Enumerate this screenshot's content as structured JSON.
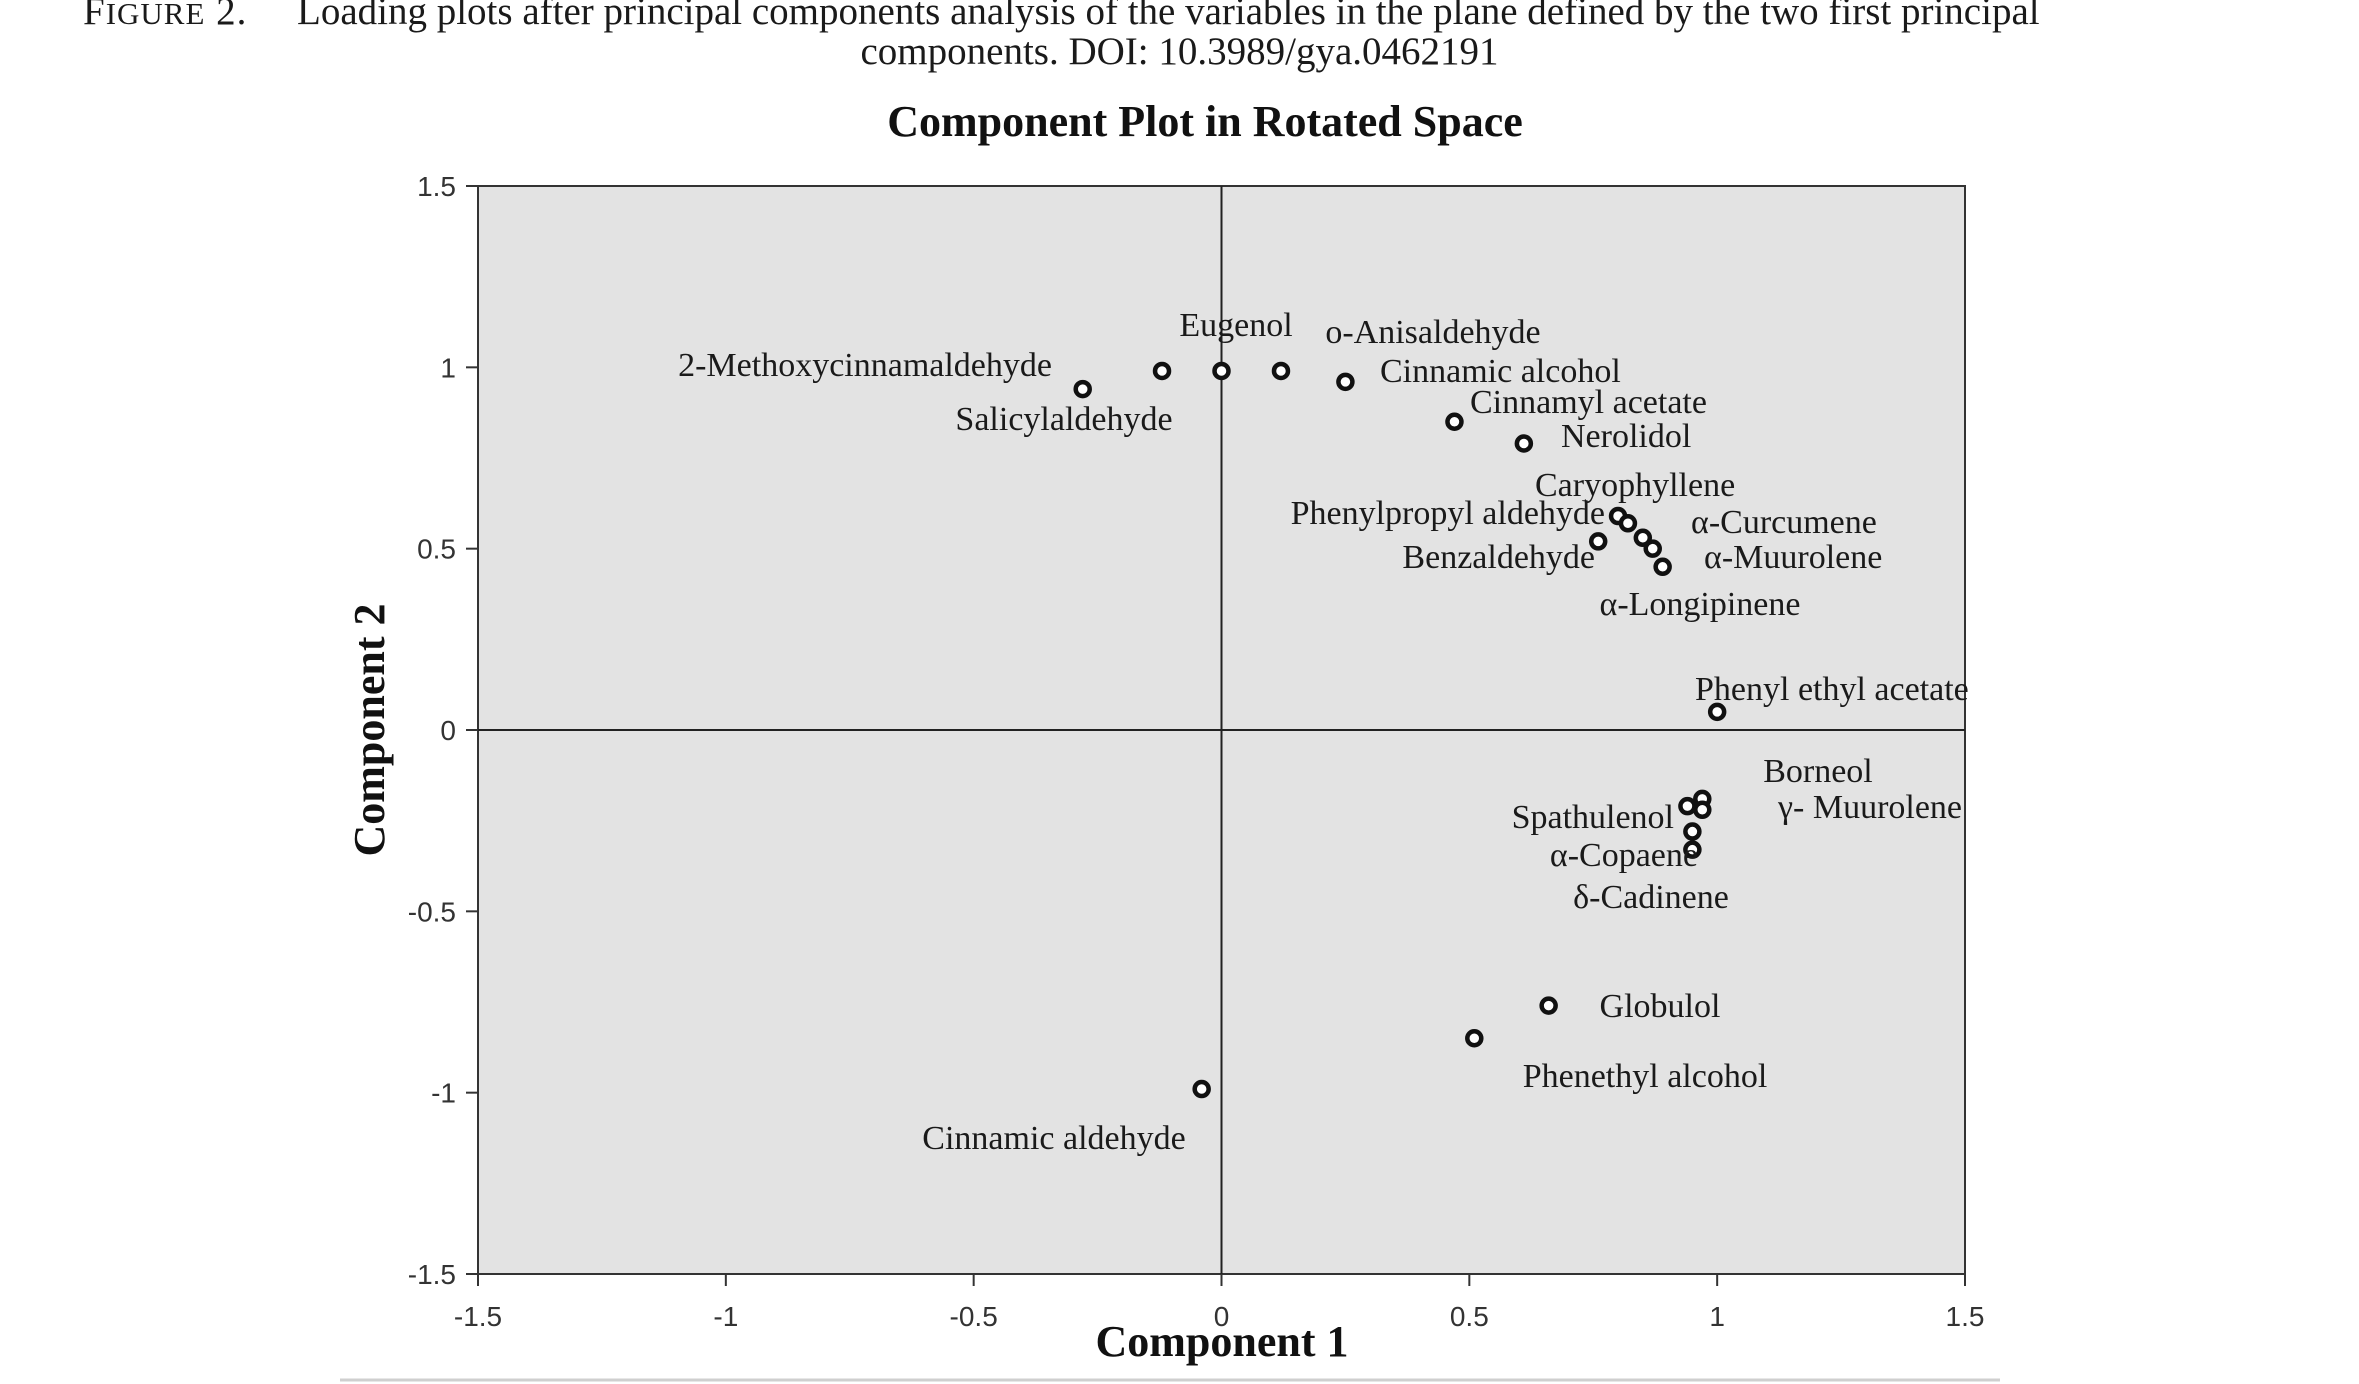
{
  "caption": {
    "figure_label_first": "F",
    "figure_label_rest": "IGURE",
    "figure_number": "2.",
    "line1": "Loading plots after principal components analysis of the variables in the plane defined by the two first principal",
    "line2": "components. DOI: 10.3989/gya.0462191"
  },
  "chart_data": {
    "type": "scatter",
    "title": "Component Plot in Rotated Space",
    "xlabel": "Component 1",
    "ylabel": "Component 2",
    "xlim": [
      -1.5,
      1.5
    ],
    "ylim": [
      -1.5,
      1.5
    ],
    "xticks": [
      "-1.5",
      "-1",
      "-0.5",
      "0",
      "0.5",
      "1",
      "1.5"
    ],
    "yticks": [
      "-1.5",
      "-1",
      "-0.5",
      "0",
      "0.5",
      "1",
      "1.5"
    ],
    "grid": false,
    "plot_background": "#e3e3e3",
    "marker_color": "#111111",
    "points": [
      {
        "label": "2-Methoxycinnamaldehyde",
        "x": -0.28,
        "y": 0.94
      },
      {
        "label": "Salicylaldehyde",
        "x": -0.12,
        "y": 0.99
      },
      {
        "label": "Eugenol",
        "x": 0.0,
        "y": 0.99
      },
      {
        "label": "o-Anisaldehyde",
        "x": 0.12,
        "y": 0.99
      },
      {
        "label": "Cinnamic alcohol",
        "x": 0.25,
        "y": 0.96
      },
      {
        "label": "Cinnamyl acetate",
        "x": 0.47,
        "y": 0.85
      },
      {
        "label": "Nerolidol",
        "x": 0.61,
        "y": 0.79
      },
      {
        "label": "Benzaldehyde",
        "x": 0.76,
        "y": 0.52
      },
      {
        "label": "Phenylpropyl aldehyde",
        "x": 0.8,
        "y": 0.59
      },
      {
        "label": "Caryophyllene",
        "x": 0.82,
        "y": 0.57
      },
      {
        "label": "α-Curcumene",
        "x": 0.85,
        "y": 0.53
      },
      {
        "label": "α-Muurolene",
        "x": 0.87,
        "y": 0.5
      },
      {
        "label": "α-Longipinene",
        "x": 0.89,
        "y": 0.45
      },
      {
        "label": "Phenyl ethyl acetate",
        "x": 1.0,
        "y": 0.05
      },
      {
        "label": "Borneol",
        "x": 0.97,
        "y": -0.19
      },
      {
        "label": "γ- Muurolene",
        "x": 0.97,
        "y": -0.22
      },
      {
        "label": "Spathulenol",
        "x": 0.94,
        "y": -0.21
      },
      {
        "label": "α-Copaene",
        "x": 0.95,
        "y": -0.28
      },
      {
        "label": "δ-Cadinene",
        "x": 0.95,
        "y": -0.33
      },
      {
        "label": "Globulol",
        "x": 0.66,
        "y": -0.76
      },
      {
        "label": "Phenethyl alcohol",
        "x": 0.51,
        "y": -0.85
      },
      {
        "label": "Cinnamic aldehyde",
        "x": -0.04,
        "y": -0.99
      }
    ],
    "annotations": [
      "2-Methoxycinnamaldehyde",
      "Salicylaldehyde",
      "Eugenol",
      "o-Anisaldehyde",
      "Cinnamic alcohol",
      "Cinnamyl  acetate",
      "Nerolidol",
      "Caryophyllene",
      "Phenylpropyl  aldehyde",
      "α-Curcumene",
      "Benzaldehyde",
      "α-Muurolene",
      "α-Longipinene",
      "Phenyl  ethyl acetate",
      "Borneol",
      "γ- Muurolene",
      "Spathulenol",
      "α-Copaene",
      "δ-Cadinene",
      "Globulol",
      "Phenethyl  alcohol",
      "Cinnamic  aldehyde"
    ]
  }
}
